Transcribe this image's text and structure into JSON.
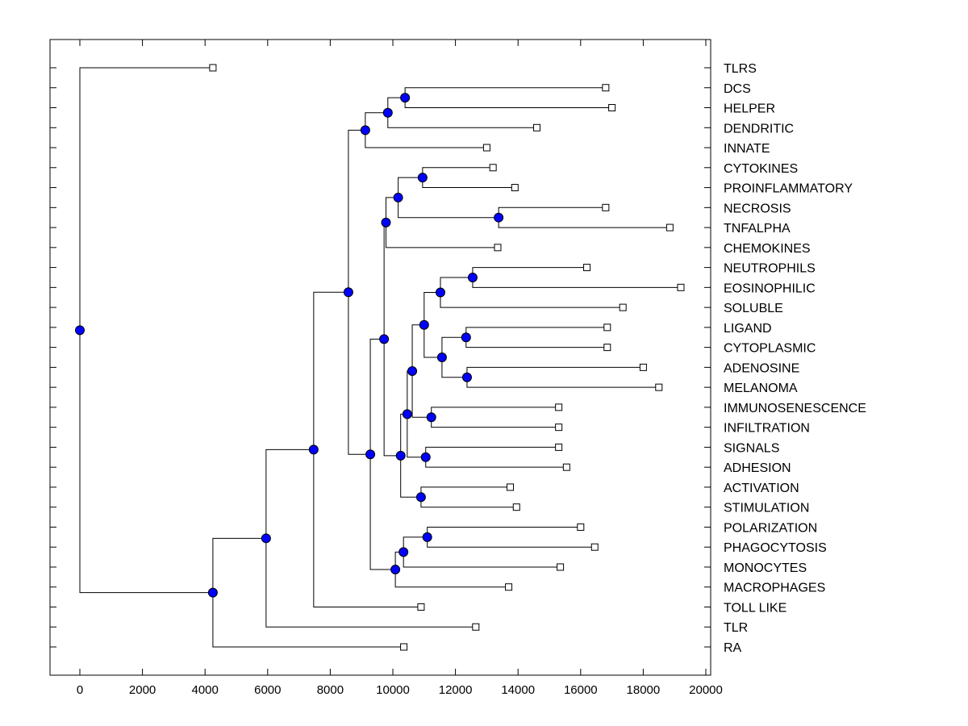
{
  "chart_data": {
    "type": "dendrogram",
    "title": "",
    "xlabel": "",
    "ylabel": "",
    "xlim": [
      -1000,
      20200
    ],
    "x_ticks": [
      0,
      2000,
      4000,
      6000,
      8000,
      10000,
      12000,
      14000,
      16000,
      18000,
      20000
    ],
    "x_tick_labels": [
      "0",
      "2000",
      "4000",
      "6000",
      "8000",
      "10000",
      "12000",
      "14000",
      "16000",
      "18000",
      "20000"
    ],
    "leaf_order": [
      "TLRS",
      "DCS",
      "HELPER",
      "DENDRITIC",
      "INNATE",
      "CYTOKINES",
      "PROINFLAMMATORY",
      "NECROSIS",
      "TNFALPHA",
      "CHEMOKINES",
      "NEUTROPHILS",
      "EOSINOPHILIC",
      "SOLUBLE",
      "LIGAND",
      "CYTOPLASMIC",
      "ADENOSINE",
      "MELANOMA",
      "IMMUNOSENESCENCE",
      "INFILTRATION",
      "SIGNALS",
      "ADHESION",
      "ACTIVATION",
      "STIMULATION",
      "POLARIZATION",
      "PHAGOCYTOSIS",
      "MONOCYTES",
      "MACROPHAGES",
      "TOLL LIKE",
      "TLR",
      "RA"
    ],
    "leaves": {
      "TLRS": 4250,
      "DCS": 16800,
      "HELPER": 17000,
      "DENDRITIC": 14600,
      "INNATE": 13000,
      "CYTOKINES": 13200,
      "PROINFLAMMATORY": 13900,
      "NECROSIS": 16800,
      "TNFALPHA": 18850,
      "CHEMOKINES": 13350,
      "NEUTROPHILS": 16200,
      "EOSINOPHILIC": 19200,
      "SOLUBLE": 17350,
      "LIGAND": 16850,
      "CYTOPLASMIC": 16850,
      "ADENOSINE": 18000,
      "MELANOMA": 18500,
      "IMMUNOSENESCENCE": 15300,
      "INFILTRATION": 15300,
      "SIGNALS": 15300,
      "ADHESION": 15550,
      "ACTIVATION": 13750,
      "STIMULATION": 13950,
      "POLARIZATION": 16000,
      "PHAGOCYTOSIS": 16450,
      "MONOCYTES": 15350,
      "MACROPHAGES": 13700,
      "TOLL LIKE": 10900,
      "TLR": 12650,
      "RA": 10350
    },
    "nodes": [
      {
        "id": "root",
        "value": 0,
        "children": [
          "TLRS",
          "n4250"
        ]
      },
      {
        "id": "n4250",
        "value": 4250,
        "children": [
          "n5950",
          "RA"
        ]
      },
      {
        "id": "n5950",
        "value": 5950,
        "children": [
          "n7470",
          "TLR"
        ]
      },
      {
        "id": "n7470",
        "value": 7470,
        "children": [
          "n8580",
          "TOLL LIKE"
        ]
      },
      {
        "id": "n8580",
        "value": 8580,
        "children": [
          "n9120",
          "n9280"
        ]
      },
      {
        "id": "n9120",
        "value": 9120,
        "children": [
          "n9840",
          "INNATE"
        ]
      },
      {
        "id": "n9840",
        "value": 9840,
        "children": [
          "n10390",
          "DENDRITIC"
        ]
      },
      {
        "id": "n10390",
        "value": 10390,
        "children": [
          "DCS",
          "HELPER"
        ]
      },
      {
        "id": "n9280",
        "value": 9280,
        "children": [
          "n9720",
          "n10080"
        ]
      },
      {
        "id": "n9720",
        "value": 9720,
        "children": [
          "n9780",
          "n10250"
        ]
      },
      {
        "id": "n9780",
        "value": 9780,
        "children": [
          "n10170",
          "CHEMOKINES"
        ]
      },
      {
        "id": "n10170",
        "value": 10170,
        "children": [
          "n10950",
          "n13380"
        ]
      },
      {
        "id": "n10950",
        "value": 10950,
        "children": [
          "CYTOKINES",
          "PROINFLAMMATORY"
        ]
      },
      {
        "id": "n13380",
        "value": 13380,
        "children": [
          "NECROSIS",
          "TNFALPHA"
        ]
      },
      {
        "id": "n10250",
        "value": 10250,
        "children": [
          "n10460",
          "n10900"
        ]
      },
      {
        "id": "n10460",
        "value": 10460,
        "children": [
          "n10620",
          "n11050"
        ]
      },
      {
        "id": "n10620",
        "value": 10620,
        "children": [
          "n11000",
          "n11230"
        ]
      },
      {
        "id": "n11000",
        "value": 11000,
        "children": [
          "n11520",
          "n11570"
        ]
      },
      {
        "id": "n11520",
        "value": 11520,
        "children": [
          "n12550",
          "SOLUBLE"
        ]
      },
      {
        "id": "n12550",
        "value": 12550,
        "children": [
          "NEUTROPHILS",
          "EOSINOPHILIC"
        ]
      },
      {
        "id": "n11570",
        "value": 11570,
        "children": [
          "n12340",
          "n12370"
        ]
      },
      {
        "id": "n12340",
        "value": 12340,
        "children": [
          "LIGAND",
          "CYTOPLASMIC"
        ]
      },
      {
        "id": "n12370",
        "value": 12370,
        "children": [
          "ADENOSINE",
          "MELANOMA"
        ]
      },
      {
        "id": "n11230",
        "value": 11230,
        "children": [
          "IMMUNOSENESCENCE",
          "INFILTRATION"
        ]
      },
      {
        "id": "n11050",
        "value": 11050,
        "children": [
          "SIGNALS",
          "ADHESION"
        ]
      },
      {
        "id": "n10900",
        "value": 10900,
        "children": [
          "ACTIVATION",
          "STIMULATION"
        ]
      },
      {
        "id": "n10080",
        "value": 10080,
        "children": [
          "n10340",
          "MACROPHAGES"
        ]
      },
      {
        "id": "n10340",
        "value": 10340,
        "children": [
          "n11100",
          "MONOCYTES"
        ]
      },
      {
        "id": "n11100",
        "value": 11100,
        "children": [
          "POLARIZATION",
          "PHAGOCYTOSIS"
        ]
      }
    ],
    "grid": false,
    "legend": "none",
    "colors": {
      "internal_node": "#0000ff",
      "leaf_marker": "#ffffff",
      "line": "#000000"
    }
  }
}
